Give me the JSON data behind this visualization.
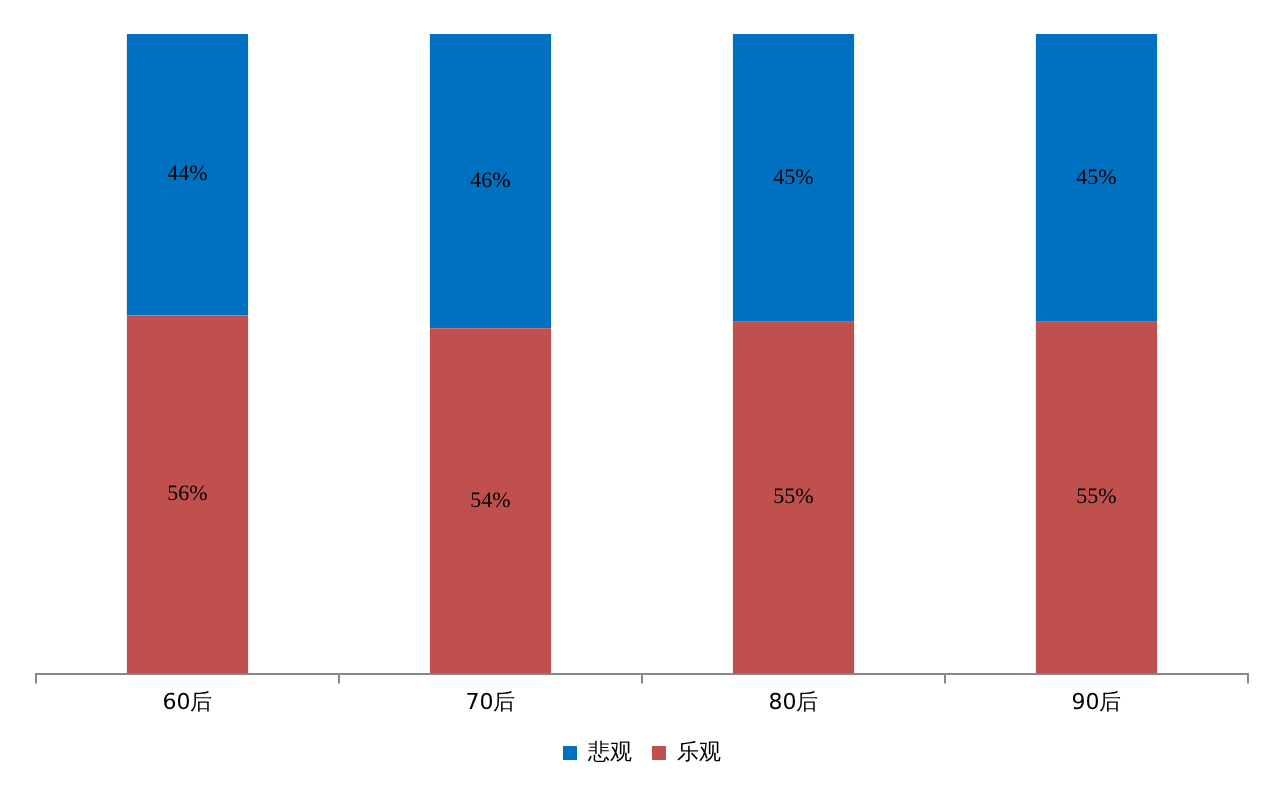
{
  "chart_data": {
    "type": "bar",
    "stacked": true,
    "categories": [
      "60后",
      "70后",
      "80后",
      "90后"
    ],
    "series": [
      {
        "name": "乐观",
        "color": "#c0504d",
        "values": [
          56,
          54,
          55,
          55
        ],
        "value_labels": [
          "56%",
          "54%",
          "55%",
          "55%"
        ]
      },
      {
        "name": "悲观",
        "color": "#0070c0",
        "values": [
          44,
          46,
          45,
          45
        ],
        "value_labels": [
          "44%",
          "46%",
          "45%",
          "45%"
        ]
      }
    ],
    "legend": "bottom"
  }
}
